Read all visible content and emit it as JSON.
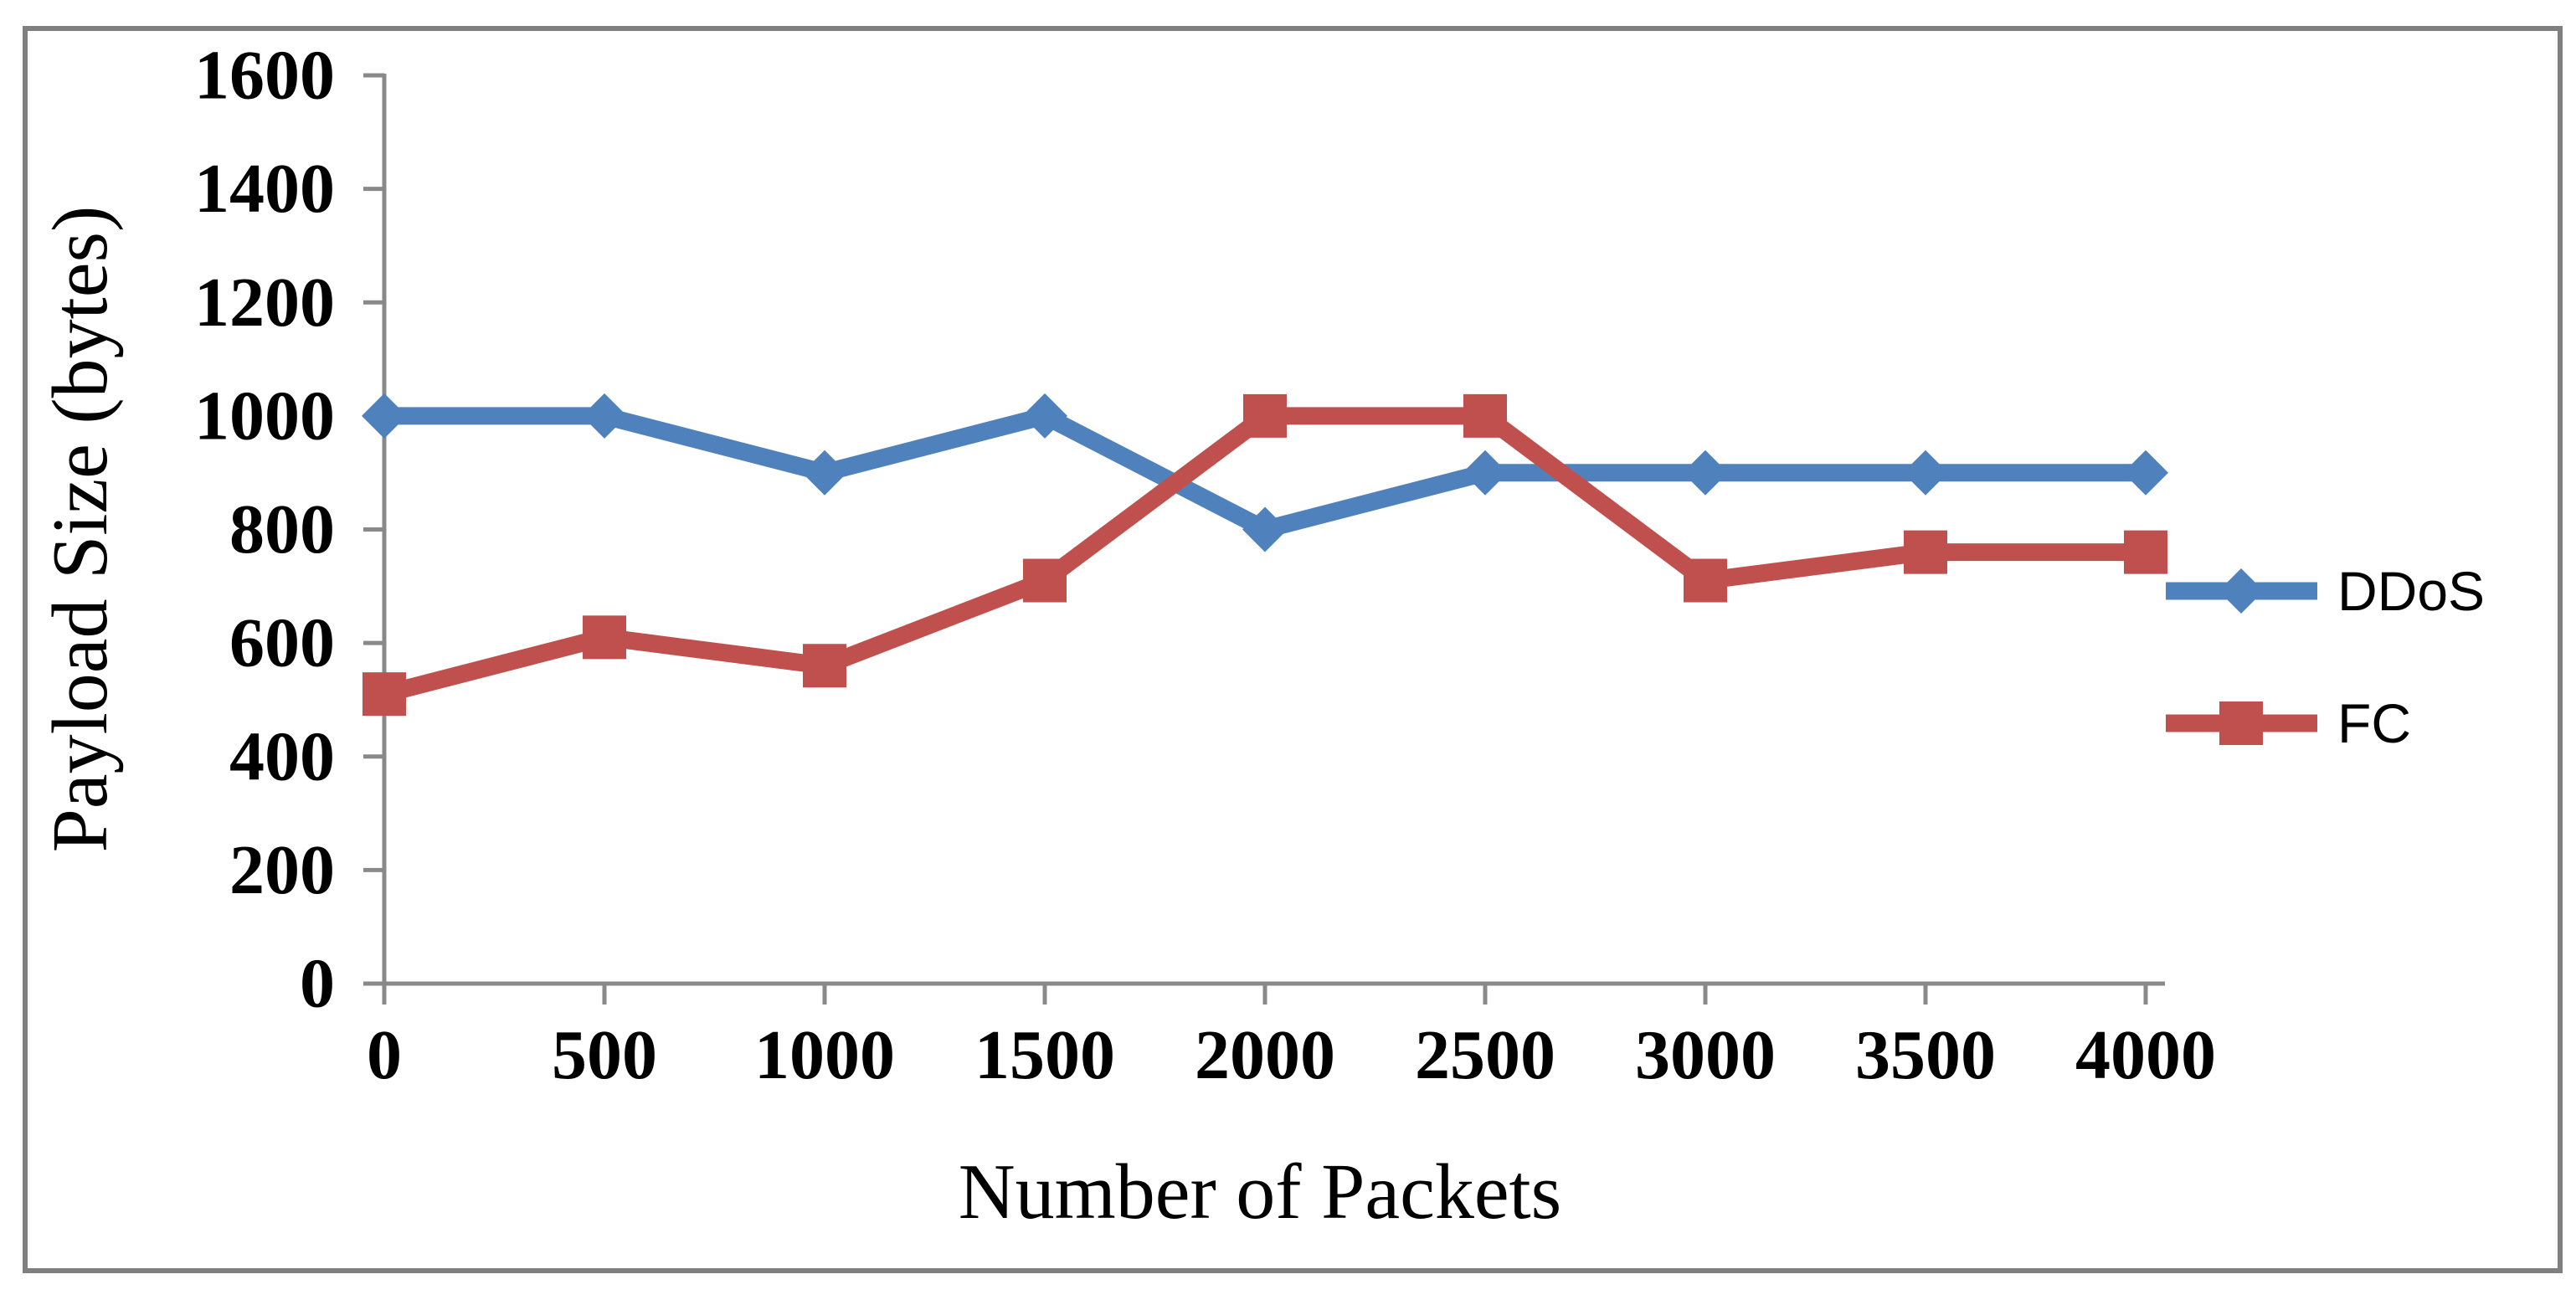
{
  "figure": {
    "background_color": "#FFFFFF",
    "border_color": "#7F7F7F",
    "axis_line_color": "#898989",
    "text_color": "#000000"
  },
  "chart_data": {
    "type": "line",
    "title": "",
    "xlabel": "Number of Packets",
    "ylabel": "Payload Size (bytes)",
    "categories": [
      0,
      500,
      1000,
      1500,
      2000,
      2500,
      3000,
      3500,
      4000
    ],
    "x_tick_labels": [
      "0",
      "500",
      "1000",
      "1500",
      "2000",
      "2500",
      "3000",
      "3500",
      "4000"
    ],
    "y_ticks": [
      0,
      200,
      400,
      600,
      800,
      1000,
      1200,
      1400,
      1600
    ],
    "y_tick_labels": [
      "0",
      "200",
      "400",
      "600",
      "800",
      "1000",
      "1200",
      "1400",
      "1600"
    ],
    "xlim": [
      0,
      4000
    ],
    "ylim": [
      0,
      1600
    ],
    "grid": "off",
    "legend_position": "right",
    "series": [
      {
        "name": "DDoS",
        "color": "#4F81BD",
        "marker": "diamond",
        "values": [
          1000,
          1000,
          900,
          1000,
          800,
          900,
          900,
          900,
          900
        ]
      },
      {
        "name": "FC",
        "color": "#C0504D",
        "marker": "square",
        "values": [
          510,
          610,
          560,
          710,
          1000,
          1000,
          710,
          760,
          760
        ]
      }
    ]
  }
}
